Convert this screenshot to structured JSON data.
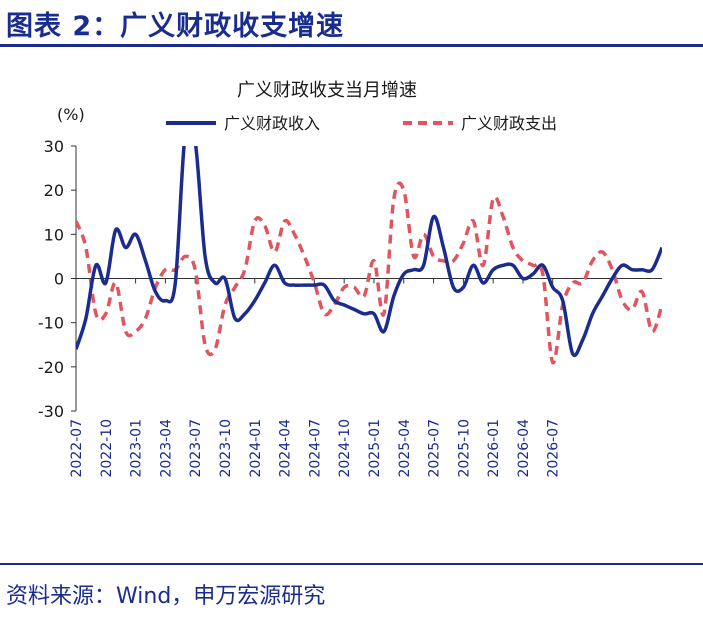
{
  "header": {
    "figure_title": "图表 2：广义财政收支增速"
  },
  "footer": {
    "source": "资料来源：Wind，申万宏源研究"
  },
  "colors": {
    "brand_blue": "#1b2c8f",
    "revenue_line": "#1b2c8f",
    "expenditure_line": "#e0555f"
  },
  "chart_data": {
    "type": "line",
    "title": "广义财政收支当月增速",
    "ylabel": "(%)",
    "xlabel": "",
    "ylim": [
      -30,
      30
    ],
    "yticks": [
      30,
      20,
      10,
      0,
      -10,
      -20,
      -30
    ],
    "xticks": [
      "2022-07",
      "2022-10",
      "2023-01",
      "2023-04",
      "2023-07",
      "2023-10",
      "2024-01",
      "2024-04",
      "2024-07",
      "2024-10",
      "2025-01",
      "2025-04",
      "2025-07",
      "2025-10",
      "2026-01",
      "2026-04",
      "2026-07"
    ],
    "x_start": "2022-07",
    "legend_position": "top",
    "grid": false,
    "series": [
      {
        "name": "广义财政收入",
        "style": "solid",
        "values": [
          -16,
          -9,
          3,
          -1,
          11,
          7,
          10,
          4,
          -3,
          -5,
          -1,
          33,
          31,
          5,
          -1,
          0,
          -9,
          -8,
          -5,
          -1,
          3,
          -1,
          -1.5,
          -1.5,
          -1.5,
          -1.5,
          -5,
          -6,
          -7,
          -8,
          -8,
          -12,
          -4,
          1,
          2,
          3,
          14,
          7,
          -2,
          -2,
          3,
          -1,
          2,
          3,
          3,
          0,
          1,
          3,
          -2,
          -5,
          -17,
          -14,
          -8,
          -4,
          0,
          3,
          2,
          2,
          2,
          7
        ]
      },
      {
        "name": "广义财政支出",
        "style": "dashed",
        "values": [
          13,
          7,
          -8,
          -8,
          -1,
          -12,
          -12,
          -9,
          -2,
          2,
          2,
          5,
          2,
          -15,
          -16,
          -6,
          -2,
          2,
          13,
          12,
          6,
          13,
          10,
          5,
          -1,
          -8,
          -6,
          -2,
          -2,
          -4,
          4,
          -8,
          18,
          20,
          5,
          10,
          5,
          4,
          4,
          8,
          13,
          3,
          18,
          14,
          7,
          4,
          3,
          1,
          -19,
          -6,
          -1,
          -1,
          4,
          6,
          2,
          -5,
          -7,
          -3,
          -12,
          -6
        ]
      }
    ]
  }
}
